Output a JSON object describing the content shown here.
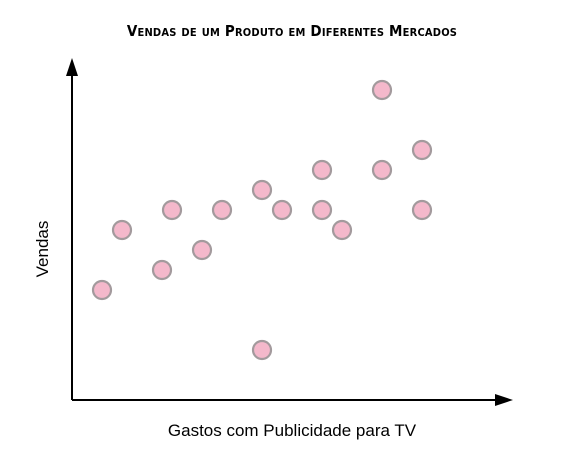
{
  "chart_data": {
    "type": "scatter",
    "title": "Vendas de um Produto em Diferentes Mercados",
    "xlabel": "Gastos com Publicidade para TV",
    "ylabel": "Vendas",
    "ticks_shown": false,
    "grid": false,
    "legend": "none",
    "xlim": [
      0,
      22
    ],
    "ylim": [
      0,
      17
    ],
    "points": [
      {
        "x": 1.5,
        "y": 5.5
      },
      {
        "x": 2.5,
        "y": 8.5
      },
      {
        "x": 4.5,
        "y": 6.5
      },
      {
        "x": 5.0,
        "y": 9.5
      },
      {
        "x": 6.5,
        "y": 7.5
      },
      {
        "x": 7.5,
        "y": 9.5
      },
      {
        "x": 9.5,
        "y": 2.5
      },
      {
        "x": 9.5,
        "y": 10.5
      },
      {
        "x": 10.5,
        "y": 9.5
      },
      {
        "x": 12.5,
        "y": 11.5
      },
      {
        "x": 12.5,
        "y": 9.5
      },
      {
        "x": 13.5,
        "y": 8.5
      },
      {
        "x": 15.5,
        "y": 15.5
      },
      {
        "x": 15.5,
        "y": 11.5
      },
      {
        "x": 17.5,
        "y": 12.5
      },
      {
        "x": 17.5,
        "y": 9.5
      }
    ],
    "colors": {
      "point_fill": "#f4b8cb",
      "point_stroke": "#a39a9d",
      "axis": "#000000"
    }
  }
}
